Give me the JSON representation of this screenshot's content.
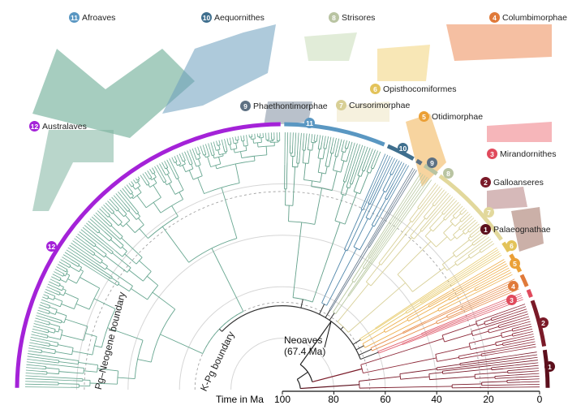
{
  "clades": [
    {
      "num": "1",
      "name": "Palaeognathae",
      "bar_color": "#5c0f1c",
      "branch_color": "#7a1a2a",
      "angles": [
        0,
        9
      ]
    },
    {
      "num": "2",
      "name": "Galloanseres",
      "bar_color": "#7a1a28",
      "branch_color": "#8e2a3a",
      "angles": [
        9,
        20
      ]
    },
    {
      "num": "3",
      "name": "Mirandornithes",
      "bar_color": "#e04a5c",
      "branch_color": "#e06070",
      "angles": [
        20,
        22.5
      ]
    },
    {
      "num": "4",
      "name": "Columbimorphae",
      "bar_color": "#e07a3a",
      "branch_color": "#e89050",
      "angles": [
        22.5,
        26
      ]
    },
    {
      "num": "5",
      "name": "Otidimorphae",
      "bar_color": "#eba037",
      "branch_color": "#eeb050",
      "angles": [
        26,
        31
      ]
    },
    {
      "num": "6",
      "name": "Opisthocomiformes",
      "bar_color": "#e3c35a",
      "branch_color": "#e8cc70",
      "angles": [
        31,
        34
      ]
    },
    {
      "num": "7",
      "name": "Cursorimorphae",
      "bar_color": "#e2d89c",
      "branch_color": "#d8d098",
      "angles": [
        34,
        54
      ]
    },
    {
      "num": "8",
      "name": "Strisores",
      "bar_color": "#b9c4a2",
      "branch_color": "#b8c8a0",
      "angles": [
        54,
        58
      ]
    },
    {
      "num": "9",
      "name": "Phaethontimorphae",
      "bar_color": "#5e7183",
      "branch_color": "#6a7d90",
      "angles": [
        58,
        60
      ]
    },
    {
      "num": "10",
      "name": "Aequornithes",
      "bar_color": "#3f6f8e",
      "branch_color": "#4f86aa",
      "angles": [
        60,
        67
      ]
    },
    {
      "num": "11",
      "name": "Afroaves",
      "bar_color": "#5a97c2",
      "branch_color": "#62a08a",
      "angles": [
        67,
        90
      ]
    },
    {
      "num": "12",
      "name": "Australaves",
      "bar_color": "#a422d8",
      "branch_color": "#68a791",
      "angles": [
        90,
        180
      ]
    }
  ],
  "axis": {
    "title": "Time in Ma",
    "ticks": [
      "100",
      "80",
      "60",
      "40",
      "20",
      "0"
    ],
    "range": [
      100,
      0
    ]
  },
  "annotations": {
    "neoaves": "Neoaves",
    "neoaves_age": "(67.4 Ma)",
    "pg_neogene": "Pg–Neogene boundary",
    "k_pg": "K-Pg boundary"
  },
  "boundaries_ma": {
    "pg_neogene": 23,
    "k_pg": 66,
    "neoaves": 67.4
  }
}
